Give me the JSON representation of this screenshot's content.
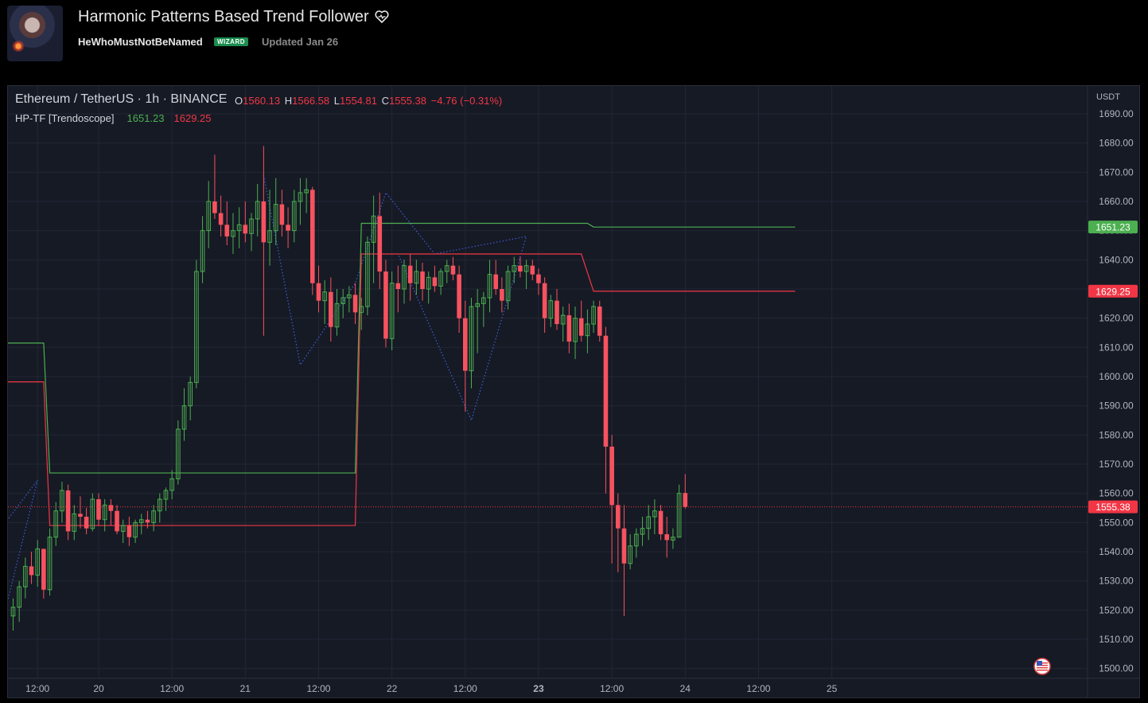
{
  "header": {
    "title": "Harmonic Patterns Based Trend Follower",
    "author": "HeWhoMustNotBeNamed",
    "badge": "WIZARD",
    "updated": "Updated Jan 26"
  },
  "legend": {
    "symbol": "Ethereum / TetherUS · 1h · BINANCE",
    "o_label": "O",
    "o": "1560.13",
    "h_label": "H",
    "h": "1566.58",
    "l_label": "L",
    "l": "1554.81",
    "c_label": "C",
    "c": "1555.38",
    "change": "−4.76 (−0.31%)",
    "indicator": "HP-TF [Trendoscope]",
    "ind_v1": "1651.23",
    "ind_v2": "1629.25"
  },
  "colors": {
    "bull": "#4caf50",
    "bear": "#f23645",
    "bear_candle": "#f7525f",
    "bull_candle": "#26a69a",
    "pattern": "#3d5ed8",
    "background": "#161a25",
    "grid": "#232735"
  },
  "chart_data": {
    "type": "candlestick",
    "y_axis_unit": "USDT",
    "y_ticks": [
      "1690.00",
      "1680.00",
      "1670.00",
      "1660.00",
      "1650.00",
      "1640.00",
      "1630.00",
      "1620.00",
      "1610.00",
      "1600.00",
      "1590.00",
      "1580.00",
      "1570.00",
      "1560.00",
      "1550.00",
      "1540.00",
      "1530.00",
      "1520.00",
      "1510.00",
      "1500.00"
    ],
    "ylim": [
      1496,
      1703
    ],
    "x_ticks": [
      {
        "label": "12:00",
        "t": -10
      },
      {
        "label": "20",
        "t": 0
      },
      {
        "label": "12:00",
        "t": 12
      },
      {
        "label": "21",
        "t": 24
      },
      {
        "label": "12:00",
        "t": 36
      },
      {
        "label": "22",
        "t": 48
      },
      {
        "label": "12:00",
        "t": 60
      },
      {
        "label": "23",
        "t": 72,
        "bold": true
      },
      {
        "label": "12:00",
        "t": 84
      },
      {
        "label": "24",
        "t": 96
      },
      {
        "label": "12:00",
        "t": 108
      },
      {
        "label": "25",
        "t": 120
      }
    ],
    "last_price": 1555.38,
    "price_labels": [
      {
        "value": 1651.23,
        "text": "1651.23",
        "color": "#4caf50"
      },
      {
        "value": 1629.25,
        "text": "1629.25",
        "color": "#f23645"
      },
      {
        "value": 1555.38,
        "text": "1555.38",
        "color": "#f23645"
      }
    ],
    "candles_start_t": -14,
    "candles": [
      [
        1518,
        1524,
        1513,
        1521
      ],
      [
        1521,
        1530,
        1516,
        1528
      ],
      [
        1528,
        1538,
        1524,
        1535
      ],
      [
        1535,
        1540,
        1529,
        1532
      ],
      [
        1532,
        1544,
        1528,
        1541
      ],
      [
        1541,
        1541,
        1524,
        1527
      ],
      [
        1527,
        1548,
        1525,
        1545
      ],
      [
        1545,
        1557,
        1542,
        1554
      ],
      [
        1554,
        1564,
        1550,
        1561
      ],
      [
        1561,
        1563,
        1544,
        1547
      ],
      [
        1547,
        1556,
        1544,
        1553
      ],
      [
        1553,
        1559,
        1548,
        1552
      ],
      [
        1552,
        1555,
        1546,
        1548
      ],
      [
        1548,
        1560,
        1547,
        1558
      ],
      [
        1558,
        1560,
        1549,
        1551
      ],
      [
        1551,
        1558,
        1547,
        1556
      ],
      [
        1556,
        1558,
        1549,
        1554
      ],
      [
        1554,
        1556,
        1546,
        1547
      ],
      [
        1547,
        1551,
        1543,
        1549
      ],
      [
        1549,
        1552,
        1542,
        1545
      ],
      [
        1545,
        1551,
        1543,
        1550
      ],
      [
        1550,
        1553,
        1546,
        1551
      ],
      [
        1551,
        1554,
        1548,
        1550
      ],
      [
        1550,
        1556,
        1547,
        1554
      ],
      [
        1554,
        1560,
        1550,
        1558
      ],
      [
        1558,
        1562,
        1554,
        1561
      ],
      [
        1561,
        1568,
        1558,
        1565
      ],
      [
        1565,
        1585,
        1563,
        1582
      ],
      [
        1582,
        1596,
        1578,
        1590
      ],
      [
        1590,
        1600,
        1585,
        1598
      ],
      [
        1598,
        1640,
        1596,
        1636
      ],
      [
        1636,
        1655,
        1632,
        1650
      ],
      [
        1650,
        1667,
        1644,
        1660
      ],
      [
        1660,
        1676,
        1654,
        1656
      ],
      [
        1656,
        1662,
        1648,
        1652
      ],
      [
        1652,
        1660,
        1645,
        1648
      ],
      [
        1648,
        1656,
        1642,
        1650
      ],
      [
        1650,
        1658,
        1644,
        1652
      ],
      [
        1652,
        1660,
        1646,
        1649
      ],
      [
        1649,
        1656,
        1643,
        1654
      ],
      [
        1654,
        1666,
        1648,
        1660
      ],
      [
        1660,
        1679,
        1614,
        1646
      ],
      [
        1646,
        1664,
        1638,
        1650
      ],
      [
        1650,
        1668,
        1645,
        1659
      ],
      [
        1659,
        1664,
        1648,
        1652
      ],
      [
        1652,
        1658,
        1644,
        1650
      ],
      [
        1650,
        1664,
        1646,
        1660
      ],
      [
        1660,
        1668,
        1652,
        1663
      ],
      [
        1663,
        1668,
        1656,
        1664
      ],
      [
        1664,
        1665,
        1628,
        1632
      ],
      [
        1632,
        1638,
        1622,
        1626
      ],
      [
        1626,
        1633,
        1618,
        1629
      ],
      [
        1629,
        1634,
        1612,
        1617
      ],
      [
        1617,
        1630,
        1614,
        1625
      ],
      [
        1625,
        1630,
        1620,
        1627
      ],
      [
        1627,
        1631,
        1622,
        1628
      ],
      [
        1628,
        1632,
        1618,
        1622
      ],
      [
        1622,
        1627,
        1616,
        1624
      ],
      [
        1624,
        1648,
        1621,
        1646
      ],
      [
        1646,
        1662,
        1632,
        1655
      ],
      [
        1655,
        1663,
        1630,
        1636
      ],
      [
        1636,
        1640,
        1610,
        1613
      ],
      [
        1613,
        1636,
        1609,
        1632
      ],
      [
        1632,
        1638,
        1622,
        1630
      ],
      [
        1630,
        1640,
        1625,
        1638
      ],
      [
        1638,
        1642,
        1626,
        1632
      ],
      [
        1632,
        1640,
        1628,
        1636
      ],
      [
        1636,
        1639,
        1626,
        1630
      ],
      [
        1630,
        1636,
        1625,
        1634
      ],
      [
        1634,
        1638,
        1629,
        1631
      ],
      [
        1631,
        1637,
        1628,
        1636
      ],
      [
        1636,
        1640,
        1632,
        1638
      ],
      [
        1638,
        1641,
        1633,
        1635
      ],
      [
        1635,
        1638,
        1615,
        1620
      ],
      [
        1620,
        1626,
        1588,
        1602
      ],
      [
        1602,
        1627,
        1596,
        1624
      ],
      [
        1624,
        1630,
        1608,
        1625
      ],
      [
        1625,
        1629,
        1617,
        1627
      ],
      [
        1627,
        1640,
        1622,
        1635
      ],
      [
        1635,
        1640,
        1628,
        1630
      ],
      [
        1630,
        1634,
        1622,
        1626
      ],
      [
        1626,
        1638,
        1623,
        1636
      ],
      [
        1636,
        1641,
        1632,
        1638
      ],
      [
        1638,
        1641,
        1634,
        1636
      ],
      [
        1636,
        1640,
        1630,
        1638
      ],
      [
        1638,
        1640,
        1633,
        1635
      ],
      [
        1635,
        1637,
        1628,
        1632
      ],
      [
        1632,
        1634,
        1615,
        1620
      ],
      [
        1620,
        1628,
        1617,
        1626
      ],
      [
        1626,
        1630,
        1616,
        1618
      ],
      [
        1618,
        1624,
        1612,
        1621
      ],
      [
        1621,
        1625,
        1608,
        1612
      ],
      [
        1612,
        1624,
        1606,
        1620
      ],
      [
        1620,
        1626,
        1612,
        1614
      ],
      [
        1614,
        1623,
        1608,
        1618
      ],
      [
        1618,
        1626,
        1615,
        1624
      ],
      [
        1624,
        1626,
        1612,
        1614
      ],
      [
        1614,
        1617,
        1560,
        1576
      ],
      [
        1576,
        1580,
        1536,
        1556
      ],
      [
        1556,
        1560,
        1533,
        1548
      ],
      [
        1548,
        1556,
        1518,
        1536
      ],
      [
        1536,
        1546,
        1534,
        1542
      ],
      [
        1542,
        1548,
        1538,
        1546
      ],
      [
        1546,
        1552,
        1542,
        1548
      ],
      [
        1548,
        1556,
        1544,
        1552
      ],
      [
        1552,
        1558,
        1546,
        1554
      ],
      [
        1554,
        1556,
        1544,
        1546
      ],
      [
        1546,
        1552,
        1538,
        1544
      ],
      [
        1544,
        1548,
        1541,
        1545
      ],
      [
        1545,
        1563,
        1545,
        1560
      ],
      [
        1560.13,
        1566.58,
        1554.81,
        1555.38
      ]
    ],
    "trend_lines": [
      {
        "name": "upper",
        "color": "#4caf50",
        "points": [
          [
            -16,
            1611.5
          ],
          [
            -9,
            1611.5
          ],
          [
            -8,
            1567
          ],
          [
            42,
            1567
          ],
          [
            43,
            1652.5
          ],
          [
            80,
            1652.5
          ],
          [
            81,
            1651.23
          ],
          [
            114,
            1651.23
          ]
        ]
      },
      {
        "name": "lower",
        "color": "#f23645",
        "points": [
          [
            -16,
            1598.2
          ],
          [
            -9,
            1598.2
          ],
          [
            -8,
            1549
          ],
          [
            42,
            1549
          ],
          [
            43,
            1642
          ],
          [
            79,
            1642
          ],
          [
            81,
            1629.25
          ],
          [
            114,
            1629.25
          ]
        ]
      }
    ],
    "patterns": [
      [
        [
          -16,
          1548
        ],
        [
          -10,
          1564.5
        ],
        [
          -16,
          1514
        ]
      ],
      [
        [
          27,
          1669
        ],
        [
          33,
          1604
        ],
        [
          42,
          1632
        ],
        [
          47,
          1663
        ],
        [
          55,
          1642
        ],
        [
          70,
          1648
        ],
        [
          61,
          1585
        ],
        [
          49,
          1642
        ]
      ]
    ]
  }
}
